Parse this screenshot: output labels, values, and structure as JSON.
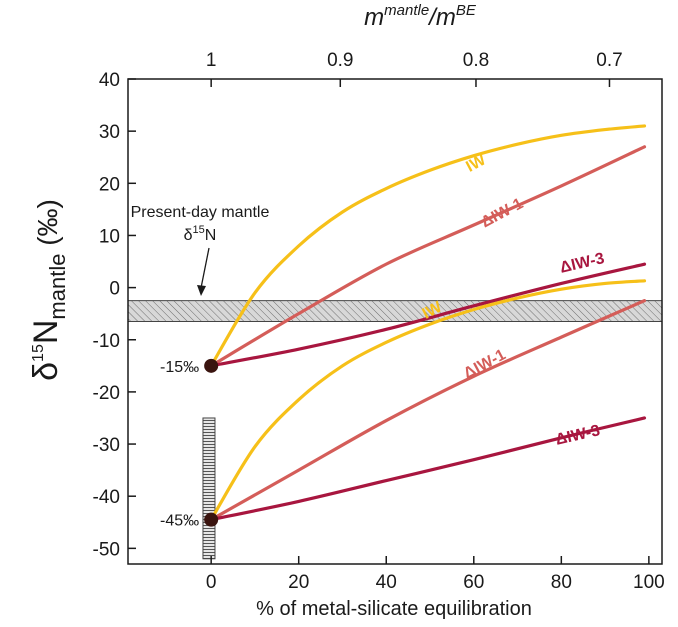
{
  "chart_data": {
    "type": "line",
    "xlabel": "% of metal-silicate equilibration",
    "ylabel": {
      "main": "δ",
      "sup": "15",
      "base": "N",
      "sub": "mantle",
      "unit": " (‰)"
    },
    "xlim": [
      -19,
      103
    ],
    "ylim": [
      -53,
      40
    ],
    "x_ticks": [
      0,
      20,
      40,
      60,
      80,
      100
    ],
    "y_ticks": [
      40,
      30,
      20,
      10,
      0,
      -10,
      -20,
      -30,
      -40,
      -50
    ],
    "top_axis": {
      "label": {
        "m1": "m",
        "sup1": "mantle",
        "slash": "/m",
        "sup2": "BE"
      },
      "ticks": [
        {
          "label": "1",
          "x": 0
        },
        {
          "label": "0.9",
          "x": 29.5
        },
        {
          "label": "0.8",
          "x": 60.5
        },
        {
          "label": "0.7",
          "x": 91
        }
      ]
    },
    "grid": false,
    "colors": {
      "IW": "#f6c019",
      "ΔIW-1": "#d45d59",
      "ΔIW-3": "#a8163f",
      "band": "#c8c8c8",
      "start_point": "#3a140f"
    },
    "present_day_band": {
      "y_min": -6.5,
      "y_max": -2.5,
      "label_line1": "Present-day mantle",
      "label_line2_base": "δ",
      "label_line2_sup": "15",
      "label_line2_end": "N"
    },
    "vertical_band": {
      "x": -0.5,
      "y_min": -52,
      "y_max": -25
    },
    "start_points": [
      {
        "x": 0,
        "y": -15,
        "label": "-15‰"
      },
      {
        "x": 0,
        "y": -44.5,
        "label": "-45‰"
      }
    ],
    "series": [
      {
        "name": "IW",
        "group": "-15",
        "color": "#f6c019",
        "x": [
          0,
          10,
          20,
          30,
          40,
          50,
          60,
          70,
          80,
          90,
          99
        ],
        "y": [
          -15,
          -1,
          8,
          14.5,
          19,
          22.5,
          25.3,
          27.5,
          29.2,
          30.3,
          31
        ]
      },
      {
        "name": "ΔIW-1",
        "group": "-15",
        "color": "#d45d59",
        "x": [
          0,
          20,
          40,
          60,
          80,
          99
        ],
        "y": [
          -15,
          -5,
          4.5,
          12,
          19.5,
          27
        ]
      },
      {
        "name": "ΔIW-3",
        "group": "-15",
        "color": "#a8163f",
        "x": [
          0,
          20,
          40,
          60,
          80,
          99
        ],
        "y": [
          -15,
          -11.8,
          -8,
          -3.5,
          0.8,
          4.5
        ]
      },
      {
        "name": "IW",
        "group": "-45",
        "color": "#f6c019",
        "x": [
          0,
          10,
          20,
          30,
          40,
          50,
          60,
          70,
          80,
          90,
          99
        ],
        "y": [
          -44.5,
          -30.5,
          -21.5,
          -15,
          -10.5,
          -7,
          -4.2,
          -2,
          -0.3,
          0.8,
          1.3
        ]
      },
      {
        "name": "ΔIW-1",
        "group": "-45",
        "color": "#d45d59",
        "x": [
          0,
          20,
          40,
          60,
          80,
          99
        ],
        "y": [
          -44.5,
          -35,
          -25.5,
          -17,
          -9.5,
          -2.5
        ]
      },
      {
        "name": "ΔIW-3",
        "group": "-45",
        "color": "#a8163f",
        "x": [
          0,
          20,
          40,
          60,
          80,
          99
        ],
        "y": [
          -44.5,
          -41,
          -37,
          -33,
          -28.8,
          -25
        ]
      }
    ],
    "curve_labels": [
      {
        "text": "IW",
        "x": 61,
        "y": 23,
        "color": "#f6c019",
        "angle": -28
      },
      {
        "text": "ΔIW-1",
        "x": 67,
        "y": 13.5,
        "color": "#d45d59",
        "angle": -28
      },
      {
        "text": "ΔIW-3",
        "x": 85,
        "y": 3.8,
        "color": "#a8163f",
        "angle": -13
      },
      {
        "text": "IW",
        "x": 51,
        "y": -5.2,
        "color": "#f6c019",
        "angle": -28
      },
      {
        "text": "ΔIW-1",
        "x": 63,
        "y": -15.5,
        "color": "#d45d59",
        "angle": -28
      },
      {
        "text": "ΔIW-3",
        "x": 84,
        "y": -29.2,
        "color": "#a8163f",
        "angle": -13
      }
    ]
  }
}
